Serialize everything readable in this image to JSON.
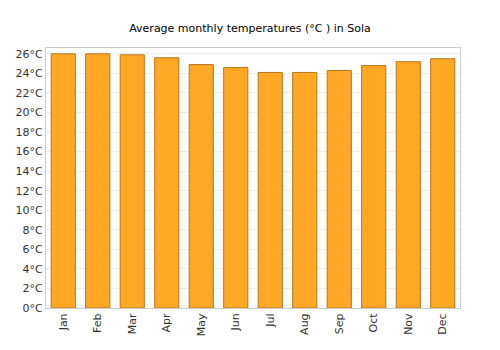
{
  "chart_data": {
    "type": "bar",
    "title": "Average monthly temperatures (°C ) in Sola",
    "categories": [
      "Jan",
      "Feb",
      "Mar",
      "Apr",
      "May",
      "Jun",
      "Jul",
      "Aug",
      "Sep",
      "Oct",
      "Nov",
      "Dec"
    ],
    "values": [
      26.0,
      26.0,
      25.9,
      25.6,
      24.9,
      24.6,
      24.1,
      24.1,
      24.3,
      24.8,
      25.2,
      25.5
    ],
    "color": "#ffa826",
    "ylim": [
      0,
      26.6
    ],
    "yticks": [
      {
        "value": 0,
        "label": "0°C"
      },
      {
        "value": 2,
        "label": "2°C"
      },
      {
        "value": 4,
        "label": "4°C"
      },
      {
        "value": 6,
        "label": "6°C"
      },
      {
        "value": 8,
        "label": "8°C"
      },
      {
        "value": 10,
        "label": "10°C"
      },
      {
        "value": 12,
        "label": "12°C"
      },
      {
        "value": 14,
        "label": "14°C"
      },
      {
        "value": 16,
        "label": "16°C"
      },
      {
        "value": 18,
        "label": "18°C"
      },
      {
        "value": 20,
        "label": "20°C"
      },
      {
        "value": 22,
        "label": "22°C"
      },
      {
        "value": 24,
        "label": "24°C"
      },
      {
        "value": 26,
        "label": "26°C"
      }
    ],
    "grid": true
  }
}
